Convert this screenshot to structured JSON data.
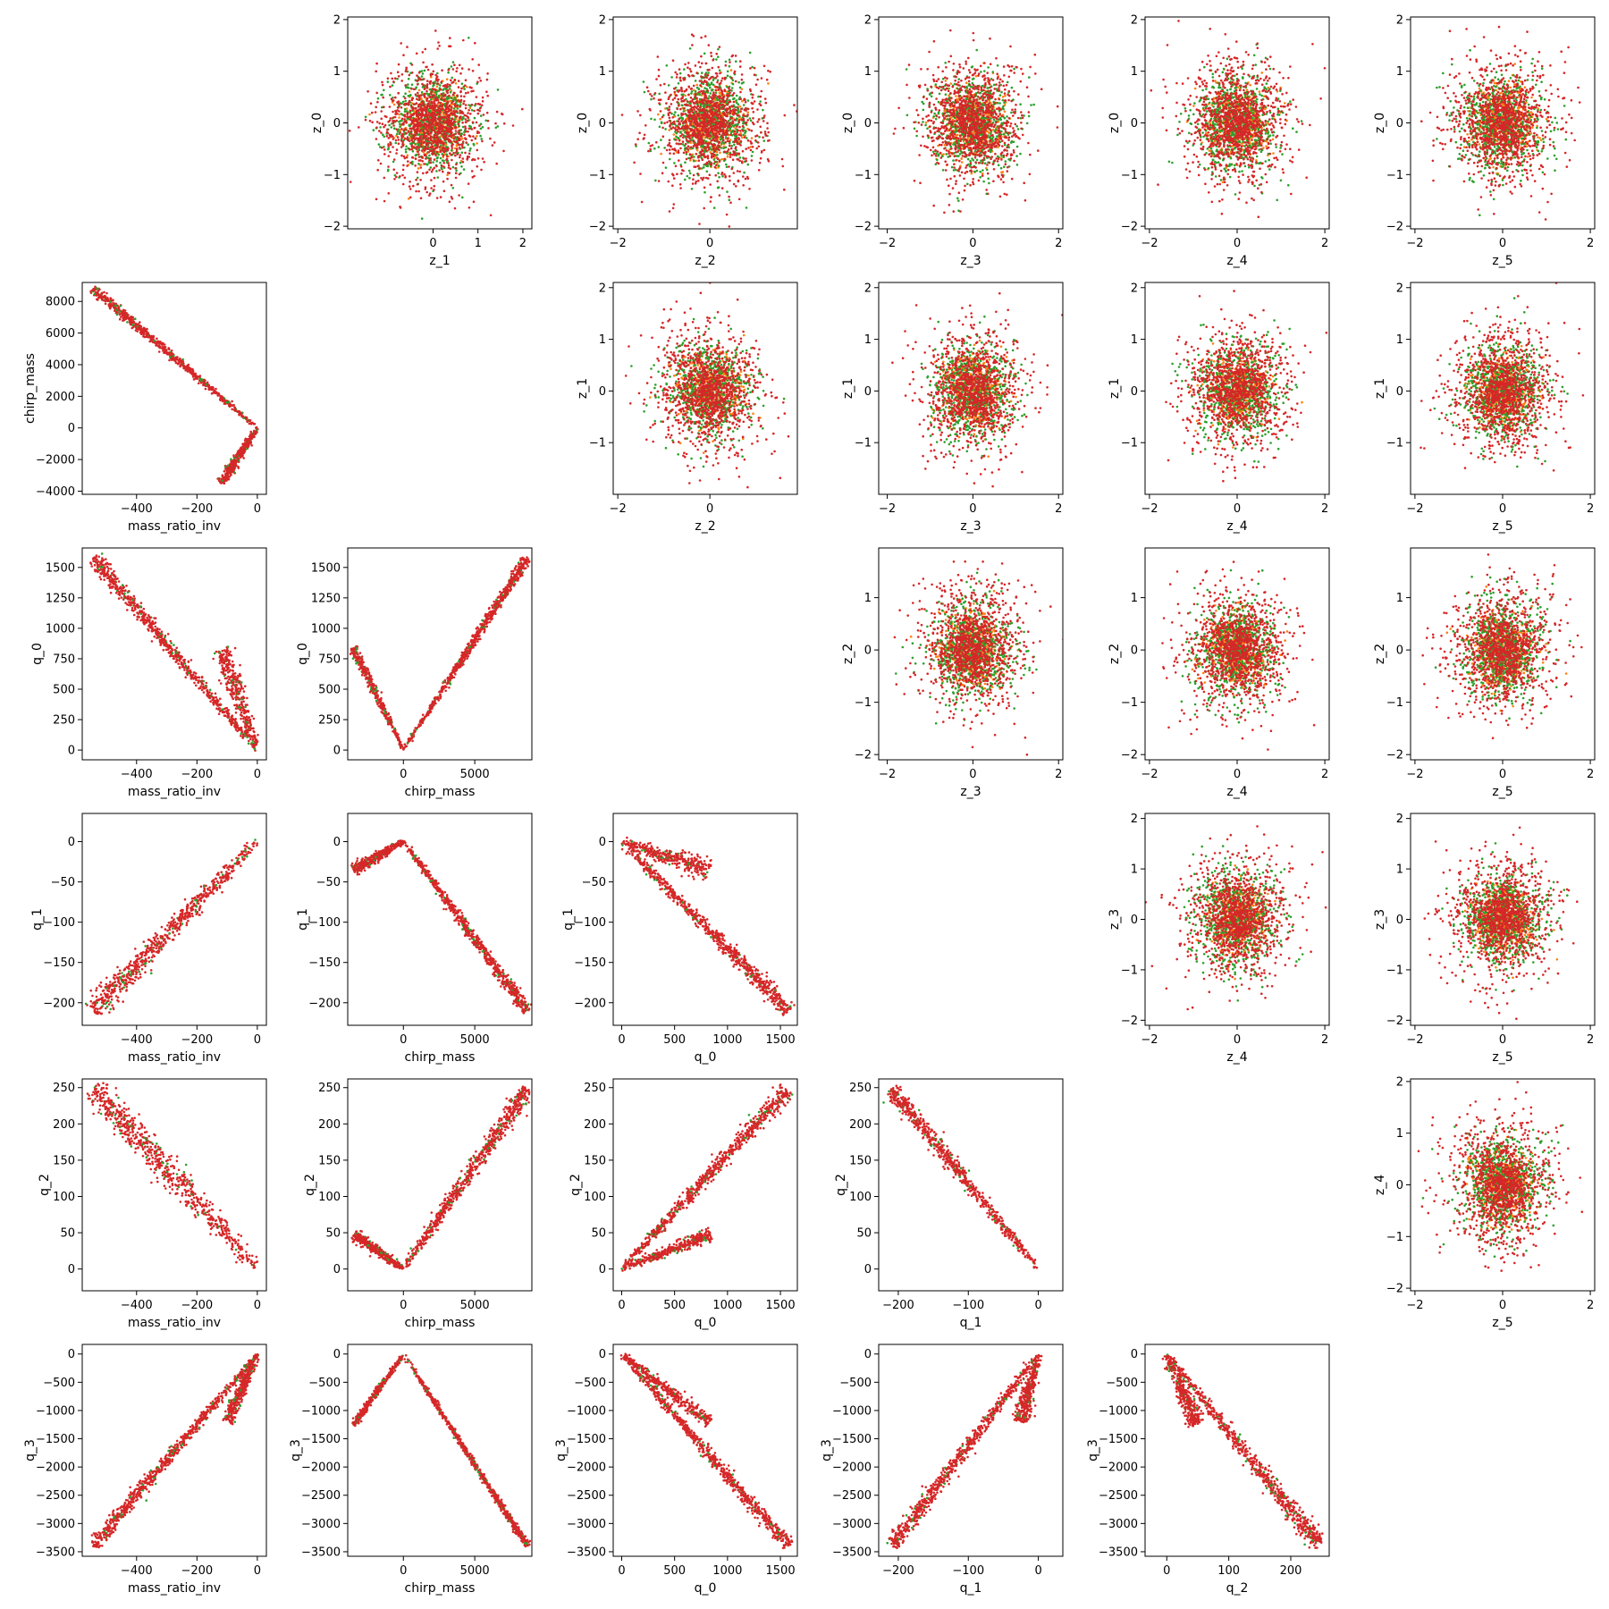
{
  "chart_data": {
    "type": "scatter",
    "title": "",
    "grid": false,
    "legend": "none",
    "colors": {
      "red": "#d62728",
      "green": "#2ca02c",
      "orange": "#ff7f0e"
    },
    "layout": "6x6 lower/upper triangle pair plot",
    "panels": [
      {
        "row": 0,
        "col": 1,
        "kind": "cloud",
        "xlabel": "z_1",
        "ylabel": "z_0",
        "xlim": [
          -1.9,
          2.2
        ],
        "ylim": [
          -2.05,
          2.05
        ],
        "xticks": [
          0,
          1,
          2
        ],
        "yticks": [
          -2,
          -1,
          0,
          1,
          2
        ],
        "spread": 0.62
      },
      {
        "row": 0,
        "col": 2,
        "kind": "cloud",
        "xlabel": "z_2",
        "ylabel": "z_0",
        "xlim": [
          -2.1,
          1.9
        ],
        "ylim": [
          -2.05,
          2.05
        ],
        "xticks": [
          -2,
          0
        ],
        "yticks": [
          -2,
          -1,
          0,
          1,
          2
        ],
        "spread": 0.62
      },
      {
        "row": 0,
        "col": 3,
        "kind": "cloud",
        "xlabel": "z_3",
        "ylabel": "z_0",
        "xlim": [
          -2.2,
          2.1
        ],
        "ylim": [
          -2.05,
          2.05
        ],
        "xticks": [
          -2,
          0,
          2
        ],
        "yticks": [
          -2,
          -1,
          0,
          1,
          2
        ],
        "spread": 0.62
      },
      {
        "row": 0,
        "col": 4,
        "kind": "cloud",
        "xlabel": "z_4",
        "ylabel": "z_0",
        "xlim": [
          -2.1,
          2.1
        ],
        "ylim": [
          -2.05,
          2.05
        ],
        "xticks": [
          -2,
          0,
          2
        ],
        "yticks": [
          -2,
          -1,
          0,
          1,
          2
        ],
        "spread": 0.62
      },
      {
        "row": 0,
        "col": 5,
        "kind": "cloud",
        "xlabel": "z_5",
        "ylabel": "z_0",
        "xlim": [
          -2.1,
          2.1
        ],
        "ylim": [
          -2.05,
          2.05
        ],
        "xticks": [
          -2,
          0,
          2
        ],
        "yticks": [
          -2,
          -1,
          0,
          1,
          2
        ],
        "spread": 0.62
      },
      {
        "row": 1,
        "col": 0,
        "kind": "line",
        "xlabel": "mass_ratio_inv",
        "ylabel": "chirp_mass",
        "xlim": [
          -580,
          30
        ],
        "ylim": [
          -4200,
          9200
        ],
        "xticks": [
          -400,
          -200,
          0
        ],
        "yticks": [
          -4000,
          -2000,
          0,
          2000,
          4000,
          6000,
          8000
        ],
        "branches": [
          {
            "from": [
              -545,
              8800
            ],
            "to": [
              0,
              0
            ],
            "width": 150
          },
          {
            "from": [
              -120,
              -3500
            ],
            "to": [
              0,
              0
            ],
            "width": 180
          }
        ]
      },
      {
        "row": 1,
        "col": 2,
        "kind": "cloud",
        "xlabel": "z_2",
        "ylabel": "z_1",
        "xlim": [
          -2.1,
          1.9
        ],
        "ylim": [
          -2.0,
          2.1
        ],
        "xticks": [
          -2,
          0
        ],
        "yticks": [
          -1,
          0,
          1,
          2
        ],
        "spread": 0.62
      },
      {
        "row": 1,
        "col": 3,
        "kind": "cloud",
        "xlabel": "z_3",
        "ylabel": "z_1",
        "xlim": [
          -2.2,
          2.1
        ],
        "ylim": [
          -2.0,
          2.1
        ],
        "xticks": [
          -2,
          0,
          2
        ],
        "yticks": [
          -1,
          0,
          1,
          2
        ],
        "spread": 0.62
      },
      {
        "row": 1,
        "col": 4,
        "kind": "cloud",
        "xlabel": "z_4",
        "ylabel": "z_1",
        "xlim": [
          -2.1,
          2.1
        ],
        "ylim": [
          -2.0,
          2.1
        ],
        "xticks": [
          -2,
          0,
          2
        ],
        "yticks": [
          -1,
          0,
          1,
          2
        ],
        "spread": 0.62
      },
      {
        "row": 1,
        "col": 5,
        "kind": "cloud",
        "xlabel": "z_5",
        "ylabel": "z_1",
        "xlim": [
          -2.1,
          2.1
        ],
        "ylim": [
          -2.0,
          2.1
        ],
        "xticks": [
          -2,
          0,
          2
        ],
        "yticks": [
          -1,
          0,
          1,
          2
        ],
        "spread": 0.62
      },
      {
        "row": 2,
        "col": 0,
        "kind": "line",
        "xlabel": "mass_ratio_inv",
        "ylabel": "q_0",
        "xlim": [
          -580,
          30
        ],
        "ylim": [
          -80,
          1660
        ],
        "xticks": [
          -400,
          -200,
          0
        ],
        "yticks": [
          0,
          250,
          500,
          750,
          1000,
          1250,
          1500
        ],
        "branches": [
          {
            "from": [
              -545,
              1580
            ],
            "to": [
              0,
              0
            ],
            "width": 30
          },
          {
            "from": [
              -120,
              830
            ],
            "to": [
              0,
              0
            ],
            "width": 40
          }
        ]
      },
      {
        "row": 2,
        "col": 1,
        "kind": "line",
        "xlabel": "chirp_mass",
        "ylabel": "q_0",
        "xlim": [
          -3900,
          9000
        ],
        "ylim": [
          -80,
          1660
        ],
        "xticks": [
          0,
          5000
        ],
        "yticks": [
          0,
          250,
          500,
          750,
          1000,
          1250,
          1500
        ],
        "branches": [
          {
            "from": [
              8700,
              1580
            ],
            "to": [
              0,
              0
            ],
            "width": 20
          },
          {
            "from": [
              -3500,
              840
            ],
            "to": [
              0,
              0
            ],
            "width": 20
          }
        ]
      },
      {
        "row": 2,
        "col": 3,
        "kind": "cloud",
        "xlabel": "z_3",
        "ylabel": "z_2",
        "xlim": [
          -2.2,
          2.1
        ],
        "ylim": [
          -2.1,
          1.95
        ],
        "xticks": [
          -2,
          0,
          2
        ],
        "yticks": [
          -2,
          -1,
          0,
          1
        ],
        "spread": 0.62
      },
      {
        "row": 2,
        "col": 4,
        "kind": "cloud",
        "xlabel": "z_4",
        "ylabel": "z_2",
        "xlim": [
          -2.1,
          2.1
        ],
        "ylim": [
          -2.1,
          1.95
        ],
        "xticks": [
          -2,
          0,
          2
        ],
        "yticks": [
          -2,
          -1,
          0,
          1
        ],
        "spread": 0.62
      },
      {
        "row": 2,
        "col": 5,
        "kind": "cloud",
        "xlabel": "z_5",
        "ylabel": "z_2",
        "xlim": [
          -2.1,
          2.1
        ],
        "ylim": [
          -2.1,
          1.95
        ],
        "xticks": [
          -2,
          0,
          2
        ],
        "yticks": [
          -2,
          -1,
          0,
          1
        ],
        "spread": 0.62
      },
      {
        "row": 3,
        "col": 0,
        "kind": "line",
        "xlabel": "mass_ratio_inv",
        "ylabel": "q_1",
        "xlim": [
          -580,
          30
        ],
        "ylim": [
          -228,
          35
        ],
        "xticks": [
          -400,
          -200,
          0
        ],
        "yticks": [
          -200,
          -150,
          -100,
          -50,
          0
        ],
        "branches": [
          {
            "from": [
              -545,
              -210
            ],
            "to": [
              0,
              0
            ],
            "width": 8
          }
        ]
      },
      {
        "row": 3,
        "col": 1,
        "kind": "line",
        "xlabel": "chirp_mass",
        "ylabel": "q_1",
        "xlim": [
          -3900,
          9000
        ],
        "ylim": [
          -228,
          35
        ],
        "xticks": [
          0,
          5000
        ],
        "yticks": [
          -200,
          -150,
          -100,
          -50,
          0
        ],
        "branches": [
          {
            "from": [
              8700,
              -210
            ],
            "to": [
              0,
              0
            ],
            "width": 4
          },
          {
            "from": [
              -3500,
              -35
            ],
            "to": [
              0,
              0
            ],
            "width": 4
          }
        ]
      },
      {
        "row": 3,
        "col": 2,
        "kind": "line",
        "xlabel": "q_0",
        "ylabel": "q_1",
        "xlim": [
          -80,
          1660
        ],
        "ylim": [
          -228,
          35
        ],
        "xticks": [
          0,
          500,
          1000,
          1500
        ],
        "yticks": [
          -200,
          -150,
          -100,
          -50,
          0
        ],
        "branches": [
          {
            "from": [
              1580,
              -210
            ],
            "to": [
              0,
              0
            ],
            "width": 5
          },
          {
            "from": [
              830,
              -35
            ],
            "to": [
              0,
              0
            ],
            "width": 7
          }
        ]
      },
      {
        "row": 3,
        "col": 4,
        "kind": "cloud",
        "xlabel": "z_4",
        "ylabel": "z_3",
        "xlim": [
          -2.1,
          2.1
        ],
        "ylim": [
          -2.1,
          2.1
        ],
        "xticks": [
          -2,
          0,
          2
        ],
        "yticks": [
          -2,
          -1,
          0,
          1,
          2
        ],
        "spread": 0.62
      },
      {
        "row": 3,
        "col": 5,
        "kind": "cloud",
        "xlabel": "z_5",
        "ylabel": "z_3",
        "xlim": [
          -2.1,
          2.1
        ],
        "ylim": [
          -2.1,
          2.1
        ],
        "xticks": [
          -2,
          0,
          2
        ],
        "yticks": [
          -2,
          -1,
          0,
          1,
          2
        ],
        "spread": 0.62
      },
      {
        "row": 4,
        "col": 0,
        "kind": "line",
        "xlabel": "mass_ratio_inv",
        "ylabel": "q_2",
        "xlim": [
          -580,
          30
        ],
        "ylim": [
          -30,
          262
        ],
        "xticks": [
          -400,
          -200,
          0
        ],
        "yticks": [
          0,
          50,
          100,
          150,
          200,
          250
        ],
        "branches": [
          {
            "from": [
              -545,
              250
            ],
            "to": [
              0,
              0
            ],
            "width": 12
          }
        ]
      },
      {
        "row": 4,
        "col": 1,
        "kind": "line",
        "xlabel": "chirp_mass",
        "ylabel": "q_2",
        "xlim": [
          -3900,
          9000
        ],
        "ylim": [
          -30,
          262
        ],
        "xticks": [
          0,
          5000
        ],
        "yticks": [
          0,
          50,
          100,
          150,
          200,
          250
        ],
        "branches": [
          {
            "from": [
              8700,
              248
            ],
            "to": [
              0,
              0
            ],
            "width": 6
          },
          {
            "from": [
              -3500,
              48
            ],
            "to": [
              0,
              0
            ],
            "width": 4
          }
        ]
      },
      {
        "row": 4,
        "col": 2,
        "kind": "line",
        "xlabel": "q_0",
        "ylabel": "q_2",
        "xlim": [
          -80,
          1660
        ],
        "ylim": [
          -30,
          262
        ],
        "xticks": [
          0,
          500,
          1000,
          1500
        ],
        "yticks": [
          0,
          50,
          100,
          150,
          200,
          250
        ],
        "branches": [
          {
            "from": [
              1580,
              248
            ],
            "to": [
              0,
              0
            ],
            "width": 6
          },
          {
            "from": [
              840,
              48
            ],
            "to": [
              0,
              0
            ],
            "width": 5
          }
        ]
      },
      {
        "row": 4,
        "col": 3,
        "kind": "line",
        "xlabel": "q_1",
        "ylabel": "q_2",
        "xlim": [
          -228,
          35
        ],
        "ylim": [
          -30,
          262
        ],
        "xticks": [
          -200,
          -100,
          0
        ],
        "yticks": [
          0,
          50,
          100,
          150,
          200,
          250
        ],
        "branches": [
          {
            "from": [
              -210,
              248
            ],
            "to": [
              0,
              0
            ],
            "width": 6
          }
        ]
      },
      {
        "row": 4,
        "col": 5,
        "kind": "cloud",
        "xlabel": "z_5",
        "ylabel": "z_4",
        "xlim": [
          -2.1,
          2.1
        ],
        "ylim": [
          -2.05,
          2.05
        ],
        "xticks": [
          -2,
          0,
          2
        ],
        "yticks": [
          -2,
          -1,
          0,
          1,
          2
        ],
        "spread": 0.62
      },
      {
        "row": 5,
        "col": 0,
        "kind": "line",
        "xlabel": "mass_ratio_inv",
        "ylabel": "q_3",
        "xlim": [
          -580,
          30
        ],
        "ylim": [
          -3580,
          170
        ],
        "xticks": [
          -400,
          -200,
          0
        ],
        "yticks": [
          -3500,
          -3000,
          -2500,
          -2000,
          -1500,
          -1000,
          -500,
          0
        ],
        "branches": [
          {
            "from": [
              -545,
              -3400
            ],
            "to": [
              0,
              0
            ],
            "width": 60
          },
          {
            "from": [
              -100,
              -1200
            ],
            "to": [
              0,
              0
            ],
            "width": 60
          }
        ]
      },
      {
        "row": 5,
        "col": 1,
        "kind": "line",
        "xlabel": "chirp_mass",
        "ylabel": "q_3",
        "xlim": [
          -3900,
          9000
        ],
        "ylim": [
          -3580,
          170
        ],
        "xticks": [
          0,
          5000
        ],
        "yticks": [
          -3500,
          -3000,
          -2500,
          -2000,
          -1500,
          -1000,
          -500,
          0
        ],
        "branches": [
          {
            "from": [
              8700,
              -3400
            ],
            "to": [
              0,
              0
            ],
            "width": 30
          },
          {
            "from": [
              -3500,
              -1250
            ],
            "to": [
              0,
              0
            ],
            "width": 30
          }
        ]
      },
      {
        "row": 5,
        "col": 2,
        "kind": "line",
        "xlabel": "q_0",
        "ylabel": "q_3",
        "xlim": [
          -80,
          1660
        ],
        "ylim": [
          -3580,
          170
        ],
        "xticks": [
          0,
          500,
          1000,
          1500
        ],
        "yticks": [
          -3500,
          -3000,
          -2500,
          -2000,
          -1500,
          -1000,
          -500,
          0
        ],
        "branches": [
          {
            "from": [
              1580,
              -3400
            ],
            "to": [
              0,
              0
            ],
            "width": 60
          },
          {
            "from": [
              830,
              -1200
            ],
            "to": [
              0,
              0
            ],
            "width": 60
          }
        ]
      },
      {
        "row": 5,
        "col": 3,
        "kind": "line",
        "xlabel": "q_1",
        "ylabel": "q_3",
        "xlim": [
          -228,
          35
        ],
        "ylim": [
          -3580,
          170
        ],
        "xticks": [
          -200,
          -100,
          0
        ],
        "yticks": [
          -3500,
          -3000,
          -2500,
          -2000,
          -1500,
          -1000,
          -500,
          0
        ],
        "branches": [
          {
            "from": [
              -210,
              -3400
            ],
            "to": [
              0,
              0
            ],
            "width": 70
          },
          {
            "from": [
              -25,
              -1200
            ],
            "to": [
              0,
              0
            ],
            "width": 70
          }
        ]
      },
      {
        "row": 5,
        "col": 4,
        "kind": "line",
        "xlabel": "q_2",
        "ylabel": "q_3",
        "xlim": [
          -35,
          262
        ],
        "ylim": [
          -3580,
          170
        ],
        "xticks": [
          0,
          100,
          200
        ],
        "yticks": [
          -3500,
          -3000,
          -2500,
          -2000,
          -1500,
          -1000,
          -500,
          0
        ],
        "branches": [
          {
            "from": [
              248,
              -3400
            ],
            "to": [
              0,
              0
            ],
            "width": 80
          },
          {
            "from": [
              48,
              -1250
            ],
            "to": [
              0,
              0
            ],
            "width": 80
          }
        ]
      }
    ]
  }
}
